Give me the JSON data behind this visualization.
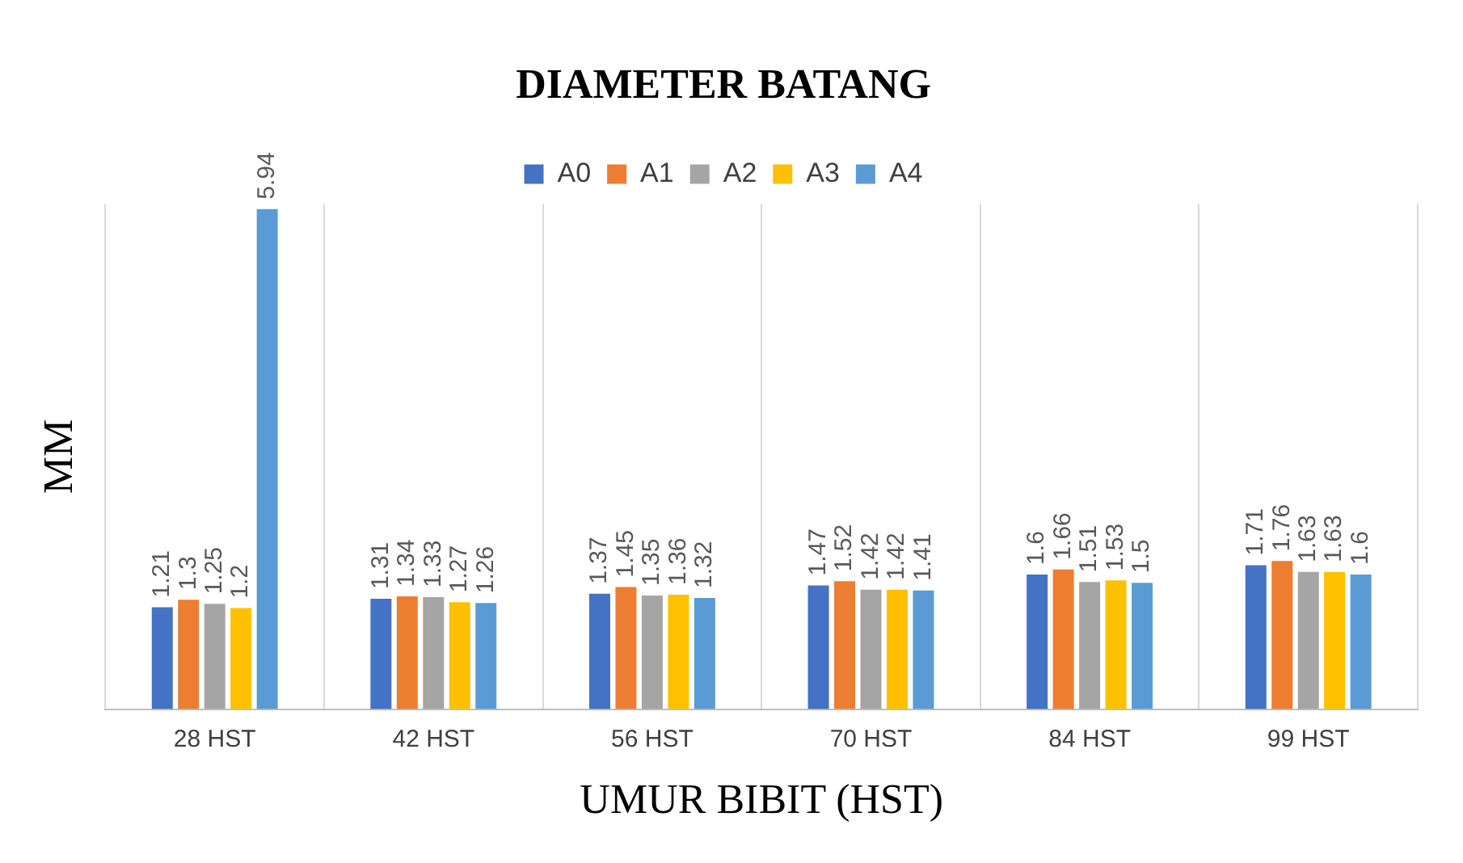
{
  "chart_data": {
    "type": "bar",
    "title": "DIAMETER BATANG",
    "xlabel": "UMUR BIBIT (HST)",
    "ylabel": "MM",
    "categories": [
      "28 HST",
      "42 HST",
      "56 HST",
      "70 HST",
      "84 HST",
      "99 HST"
    ],
    "series": [
      {
        "name": "A0",
        "color": "#4472c4",
        "values": [
          1.21,
          1.31,
          1.37,
          1.47,
          1.6,
          1.71
        ]
      },
      {
        "name": "A1",
        "color": "#ed7d31",
        "values": [
          1.3,
          1.34,
          1.45,
          1.52,
          1.66,
          1.76
        ]
      },
      {
        "name": "A2",
        "color": "#a5a5a5",
        "values": [
          1.25,
          1.33,
          1.35,
          1.42,
          1.51,
          1.63
        ]
      },
      {
        "name": "A3",
        "color": "#ffc000",
        "values": [
          1.2,
          1.27,
          1.36,
          1.42,
          1.53,
          1.63
        ]
      },
      {
        "name": "A4",
        "color": "#5b9bd5",
        "values": [
          5.94,
          1.26,
          1.32,
          1.41,
          1.5,
          1.6
        ]
      }
    ],
    "data_labels": true,
    "grid": "x",
    "legend": "top",
    "tick_labels": "x"
  }
}
